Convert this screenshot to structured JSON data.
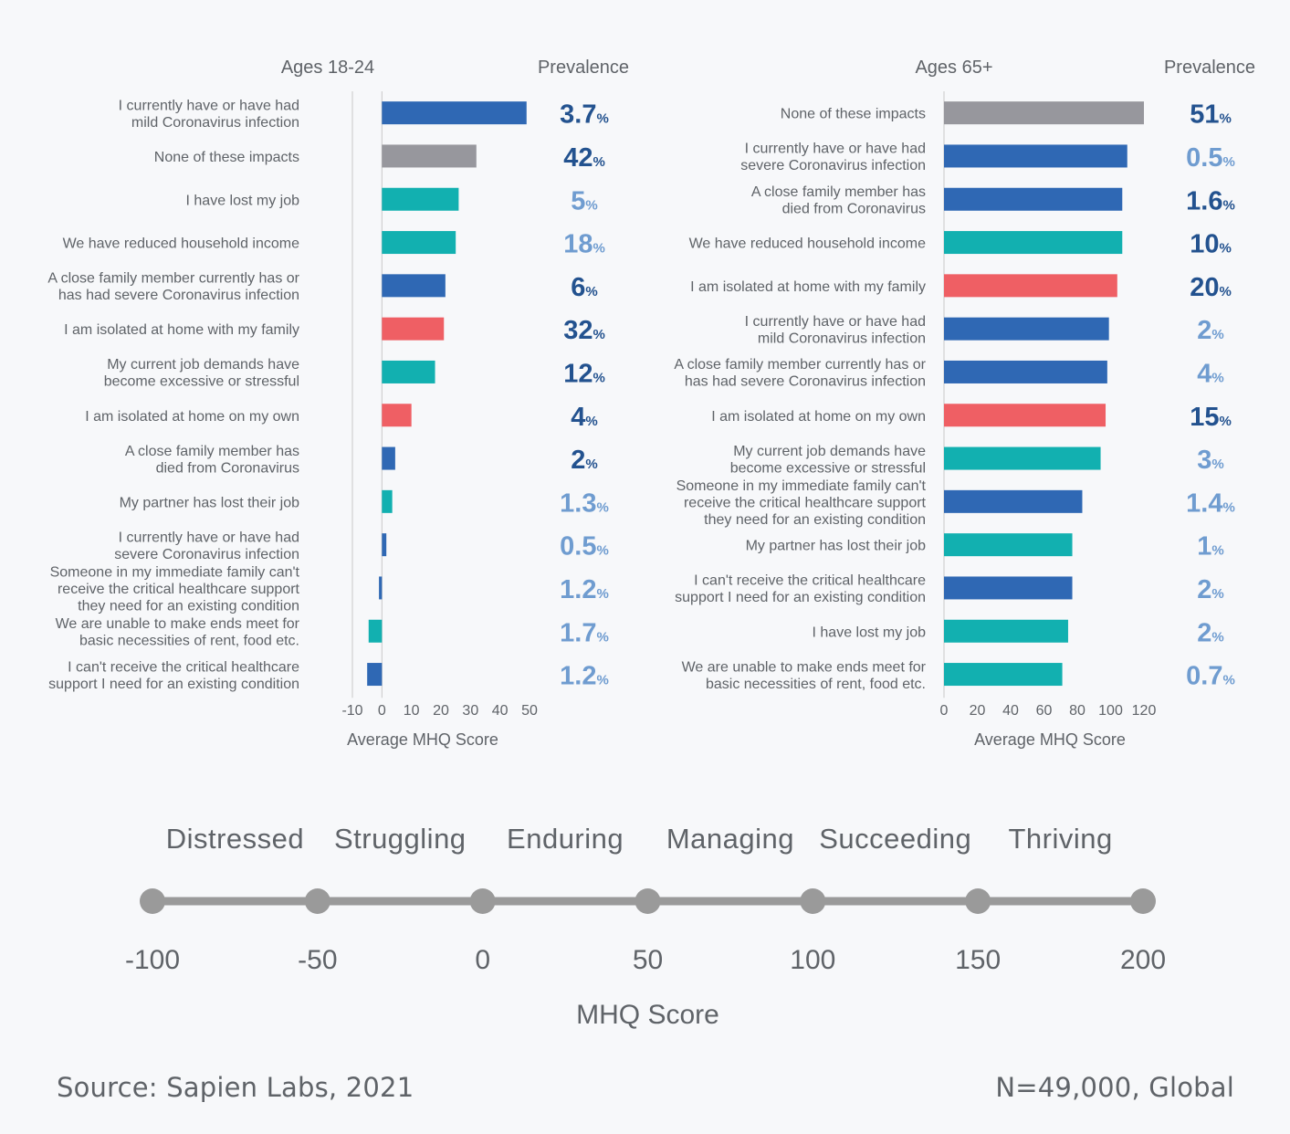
{
  "colors": {
    "blue": "#2f68b4",
    "grey": "#97979d",
    "teal": "#12b0b0",
    "red": "#ef5f64",
    "text": "#5f6368",
    "axis": "#c8c8c8",
    "prev_dark": "#23528f",
    "prev_light": "#6f9cd0",
    "scale_line": "#9a9a9a"
  },
  "chart_data": [
    {
      "type": "bar",
      "orientation": "horizontal",
      "title": "Ages 18-24",
      "value_header": "Prevalence",
      "xlabel": "Average MHQ Score",
      "xlim": [
        -10,
        50
      ],
      "xticks": [
        "-10",
        "0",
        "10",
        "20",
        "30",
        "40",
        "50"
      ],
      "bars": [
        {
          "label": [
            "I currently have or have had",
            "mild Coronavirus infection"
          ],
          "value": 49,
          "color": "blue",
          "prev_num": "3.7",
          "prev_unit": "%",
          "prev_tone": "dark"
        },
        {
          "label": [
            "None of these impacts"
          ],
          "value": 32,
          "color": "grey",
          "prev_num": "42",
          "prev_unit": "%",
          "prev_tone": "dark"
        },
        {
          "label": [
            "I have lost my job"
          ],
          "value": 26,
          "color": "teal",
          "prev_num": "5",
          "prev_unit": "%",
          "prev_tone": "light"
        },
        {
          "label": [
            "We have reduced household income"
          ],
          "value": 25,
          "color": "teal",
          "prev_num": "18",
          "prev_unit": "%",
          "prev_tone": "light"
        },
        {
          "label": [
            "A close family member currently has or",
            "has had severe Coronavirus infection"
          ],
          "value": 21.5,
          "color": "blue",
          "prev_num": "6",
          "prev_unit": "%",
          "prev_tone": "dark"
        },
        {
          "label": [
            "I am isolated at home with my family"
          ],
          "value": 21,
          "color": "red",
          "prev_num": "32",
          "prev_unit": "%",
          "prev_tone": "dark"
        },
        {
          "label": [
            "My current job demands have",
            "become excessive or stressful"
          ],
          "value": 18,
          "color": "teal",
          "prev_num": "12",
          "prev_unit": "%",
          "prev_tone": "dark"
        },
        {
          "label": [
            "I am isolated at home on my own"
          ],
          "value": 10,
          "color": "red",
          "prev_num": "4",
          "prev_unit": "%",
          "prev_tone": "dark"
        },
        {
          "label": [
            "A close family member has",
            "died from Coronavirus"
          ],
          "value": 4.5,
          "color": "blue",
          "prev_num": "2",
          "prev_unit": "%",
          "prev_tone": "dark"
        },
        {
          "label": [
            "My partner has lost their job"
          ],
          "value": 3.5,
          "color": "teal",
          "prev_num": "1.3",
          "prev_unit": "%",
          "prev_tone": "light"
        },
        {
          "label": [
            "I currently have or have had",
            "severe Coronavirus infection"
          ],
          "value": 1.5,
          "color": "blue",
          "prev_num": "0.5",
          "prev_unit": "%",
          "prev_tone": "light"
        },
        {
          "label": [
            "Someone in my immediate family can't",
            "receive the critical healthcare support",
            "they need for an existing condition"
          ],
          "value": -1,
          "color": "blue",
          "prev_num": "1.2",
          "prev_unit": "%",
          "prev_tone": "light"
        },
        {
          "label": [
            "We are unable to make ends meet for",
            "basic necessities of rent, food etc."
          ],
          "value": -4.5,
          "color": "teal",
          "prev_num": "1.7",
          "prev_unit": "%",
          "prev_tone": "light"
        },
        {
          "label": [
            "I can't receive the critical healthcare",
            "support I need for an existing condition"
          ],
          "value": -5,
          "color": "blue",
          "prev_num": "1.2",
          "prev_unit": "%",
          "prev_tone": "light"
        }
      ]
    },
    {
      "type": "bar",
      "orientation": "horizontal",
      "title": "Ages 65+",
      "value_header": "Prevalence",
      "xlabel": "Average MHQ Score",
      "xlim": [
        0,
        120
      ],
      "xticks": [
        "0",
        "20",
        "40",
        "60",
        "80",
        "100",
        "120"
      ],
      "bars": [
        {
          "label": [
            "None of these impacts"
          ],
          "value": 120,
          "color": "grey",
          "prev_num": "51",
          "prev_unit": "%",
          "prev_tone": "dark"
        },
        {
          "label": [
            "I currently have or have had",
            "severe Coronavirus infection"
          ],
          "value": 110,
          "color": "blue",
          "prev_num": "0.5",
          "prev_unit": "%",
          "prev_tone": "light"
        },
        {
          "label": [
            "A close family member has",
            "died from Coronavirus"
          ],
          "value": 107,
          "color": "blue",
          "prev_num": "1.6",
          "prev_unit": "%",
          "prev_tone": "dark"
        },
        {
          "label": [
            "We have reduced household income"
          ],
          "value": 107,
          "color": "teal",
          "prev_num": "10",
          "prev_unit": "%",
          "prev_tone": "dark"
        },
        {
          "label": [
            "I am isolated at home with my family"
          ],
          "value": 104,
          "color": "red",
          "prev_num": "20",
          "prev_unit": "%",
          "prev_tone": "dark"
        },
        {
          "label": [
            "I currently have or have had",
            "mild Coronavirus infection"
          ],
          "value": 99,
          "color": "blue",
          "prev_num": "2",
          "prev_unit": "%",
          "prev_tone": "light"
        },
        {
          "label": [
            "A close family member currently has or",
            "has had severe Coronavirus infection"
          ],
          "value": 98,
          "color": "blue",
          "prev_num": "4",
          "prev_unit": "%",
          "prev_tone": "light"
        },
        {
          "label": [
            "I am isolated at home on my own"
          ],
          "value": 97,
          "color": "red",
          "prev_num": "15",
          "prev_unit": "%",
          "prev_tone": "dark"
        },
        {
          "label": [
            "My current job demands have",
            "become excessive or stressful"
          ],
          "value": 94,
          "color": "teal",
          "prev_num": "3",
          "prev_unit": "%",
          "prev_tone": "light"
        },
        {
          "label": [
            "Someone in my immediate family can't",
            "receive the critical healthcare support",
            "they need for an existing condition"
          ],
          "value": 83,
          "color": "blue",
          "prev_num": "1.4",
          "prev_unit": "%",
          "prev_tone": "light"
        },
        {
          "label": [
            "My partner has lost their job"
          ],
          "value": 77,
          "color": "teal",
          "prev_num": "1",
          "prev_unit": "%",
          "prev_tone": "light"
        },
        {
          "label": [
            "I can't receive the critical healthcare",
            "support I need for an existing condition"
          ],
          "value": 77,
          "color": "blue",
          "prev_num": "2",
          "prev_unit": "%",
          "prev_tone": "light"
        },
        {
          "label": [
            "I have lost my job"
          ],
          "value": 74.5,
          "color": "teal",
          "prev_num": "2",
          "prev_unit": "%",
          "prev_tone": "light"
        },
        {
          "label": [
            "We are unable to make ends meet for",
            "basic necessities of rent, food etc."
          ],
          "value": 71,
          "color": "teal",
          "prev_num": "0.7",
          "prev_unit": "%",
          "prev_tone": "light"
        }
      ]
    }
  ],
  "scale": {
    "categories": [
      "Distressed",
      "Struggling",
      "Enduring",
      "Managing",
      "Succeeding",
      "Thriving"
    ],
    "ticks": [
      -100,
      -50,
      0,
      50,
      100,
      150,
      200
    ],
    "tick_labels": [
      "-100",
      "-50",
      "0",
      "50",
      "100",
      "150",
      "200"
    ],
    "xlabel": "MHQ Score"
  },
  "footer": {
    "source": "Source: Sapien Labs, 2021",
    "sample": "N=49,000, Global"
  }
}
